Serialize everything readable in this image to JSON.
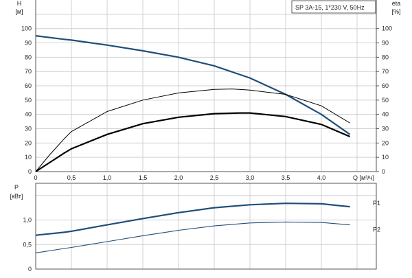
{
  "title": "SP 3A-15, 1*230 V, 50Hz",
  "chart_data": [
    {
      "type": "line",
      "xlabel": "Q [м³/ч]",
      "ylabel_left": [
        "H",
        "[м]"
      ],
      "ylabel_right": [
        "eta",
        "[%]"
      ],
      "xlim": [
        0,
        4.77
      ],
      "ylim": [
        0,
        120
      ],
      "grid": true,
      "x_ticks": [
        "0",
        "0,5",
        "1,0",
        "1,5",
        "2,0",
        "2,5",
        "3,0",
        "3,5",
        "4,0"
      ],
      "y_ticks": [
        "0",
        "10",
        "20",
        "30",
        "40",
        "50",
        "60",
        "70",
        "80",
        "90",
        "100"
      ],
      "series": [
        {
          "color": "#1f4e79",
          "x": [
            0,
            0.4,
            0.5,
            1.0,
            1.5,
            2.0,
            2.5,
            3.0,
            3.5,
            4.0,
            4.4
          ],
          "y": [
            95,
            92.5,
            92,
            88.5,
            84.5,
            80,
            74,
            65.5,
            54,
            40,
            26
          ]
        },
        {
          "color": "#000000",
          "x": [
            0,
            0.2,
            0.4,
            0.5,
            1.0,
            1.5,
            2.0,
            2.5,
            2.75,
            3.0,
            3.5,
            4.0,
            4.4
          ],
          "y": [
            0,
            12,
            23,
            28,
            42,
            50,
            55,
            57.5,
            57.8,
            57,
            54,
            46,
            34
          ]
        },
        {
          "color": "#000000",
          "x": [
            0,
            0.2,
            0.4,
            0.5,
            1.0,
            1.5,
            2.0,
            2.5,
            2.85,
            3.0,
            3.5,
            4.0,
            4.4
          ],
          "y": [
            0,
            6.5,
            13,
            16,
            26,
            33.5,
            38,
            40.5,
            41,
            41,
            38.5,
            33,
            24.5
          ]
        }
      ]
    },
    {
      "type": "line",
      "ylabel_left": [
        "P",
        "[кВт]"
      ],
      "xlim": [
        0,
        4.77
      ],
      "ylim": [
        0,
        1.76
      ],
      "grid": true,
      "y_ticks": [
        "0",
        "0,5",
        "1,0"
      ],
      "series": [
        {
          "name": "P1",
          "color": "#1f4e79",
          "x": [
            0,
            0.4,
            0.5,
            1.0,
            1.5,
            2.0,
            2.5,
            3.0,
            3.5,
            4.0,
            4.4
          ],
          "y": [
            0.69,
            0.75,
            0.77,
            0.9,
            1.03,
            1.15,
            1.25,
            1.31,
            1.34,
            1.33,
            1.27
          ]
        },
        {
          "name": "P2",
          "color": "#1f4e79",
          "x": [
            0,
            0.4,
            0.5,
            1.0,
            1.5,
            2.0,
            2.5,
            3.0,
            3.5,
            4.0,
            4.4
          ],
          "y": [
            0.33,
            0.42,
            0.44,
            0.56,
            0.68,
            0.79,
            0.88,
            0.94,
            0.96,
            0.95,
            0.9
          ]
        }
      ]
    }
  ]
}
